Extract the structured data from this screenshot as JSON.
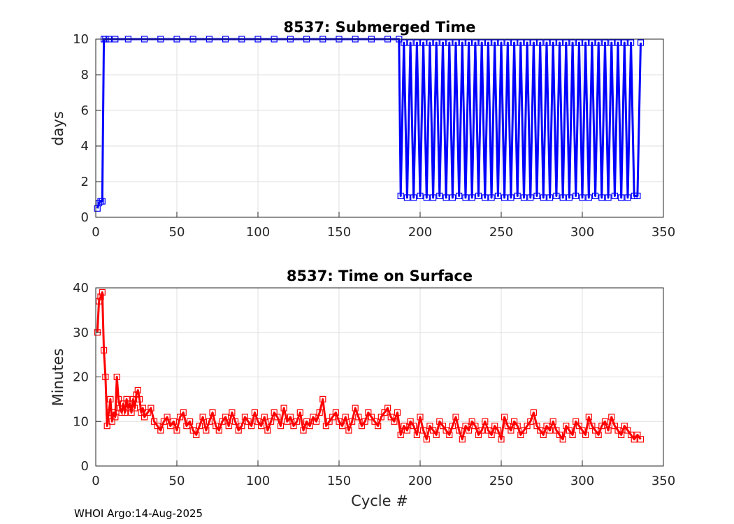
{
  "chart_data": [
    {
      "type": "line",
      "title": "8537: Submerged Time",
      "xlabel": "",
      "ylabel": "days",
      "xlim": [
        0,
        350
      ],
      "ylim": [
        0,
        10
      ],
      "xticks": [
        "0",
        "50",
        "100",
        "150",
        "200",
        "250",
        "300",
        "350"
      ],
      "yticks": [
        "0",
        "2",
        "4",
        "6",
        "8",
        "10"
      ],
      "grid": true,
      "color": "#0000ff",
      "marker": "square",
      "series": [
        {
          "name": "Submerged Time",
          "x": [
            1,
            2,
            3,
            4,
            5,
            6,
            8,
            12,
            20,
            30,
            40,
            50,
            60,
            70,
            80,
            90,
            100,
            110,
            120,
            130,
            140,
            150,
            160,
            170,
            180,
            187,
            188,
            190,
            192,
            194,
            196,
            198,
            200,
            202,
            204,
            206,
            208,
            210,
            212,
            214,
            216,
            218,
            220,
            222,
            224,
            226,
            228,
            230,
            232,
            234,
            236,
            238,
            240,
            242,
            244,
            246,
            248,
            250,
            252,
            254,
            256,
            258,
            260,
            262,
            264,
            266,
            268,
            270,
            272,
            274,
            276,
            278,
            280,
            282,
            284,
            286,
            288,
            290,
            292,
            294,
            296,
            298,
            300,
            302,
            304,
            306,
            308,
            310,
            312,
            314,
            316,
            318,
            320,
            322,
            324,
            326,
            328,
            330,
            332,
            334,
            336
          ],
          "y": [
            0.5,
            0.8,
            0.9,
            0.9,
            10.0,
            10.0,
            10.0,
            10.0,
            10.0,
            10.0,
            10.0,
            10.0,
            10.0,
            10.0,
            10.0,
            10.0,
            10.0,
            10.0,
            10.0,
            10.0,
            10.0,
            10.0,
            10.0,
            10.0,
            10.0,
            10.0,
            1.2,
            9.8,
            1.1,
            9.8,
            1.1,
            9.8,
            1.2,
            9.8,
            1.1,
            9.8,
            1.1,
            9.8,
            1.2,
            9.8,
            1.1,
            9.8,
            1.1,
            9.8,
            1.2,
            9.8,
            1.1,
            9.8,
            1.1,
            9.8,
            1.2,
            9.8,
            1.1,
            9.8,
            1.1,
            9.8,
            1.2,
            9.8,
            1.1,
            9.8,
            1.1,
            9.8,
            1.2,
            9.8,
            1.1,
            9.8,
            1.1,
            9.8,
            1.2,
            9.8,
            1.1,
            9.8,
            1.1,
            9.8,
            1.2,
            9.8,
            1.1,
            9.8,
            1.1,
            9.8,
            1.2,
            9.8,
            1.1,
            9.8,
            1.1,
            9.8,
            1.2,
            9.8,
            1.1,
            9.8,
            1.1,
            9.8,
            1.2,
            9.8,
            1.1,
            9.8,
            1.1,
            9.8,
            1.2,
            1.2,
            9.8
          ]
        }
      ]
    },
    {
      "type": "line",
      "title": "8537: Time on Surface",
      "xlabel": "Cycle #",
      "ylabel": "Minutes",
      "xlim": [
        0,
        350
      ],
      "ylim": [
        0,
        40
      ],
      "xticks": [
        "0",
        "50",
        "100",
        "150",
        "200",
        "250",
        "300",
        "350"
      ],
      "yticks": [
        "0",
        "10",
        "20",
        "30",
        "40"
      ],
      "grid": true,
      "color": "#ff0000",
      "marker": "square",
      "series": [
        {
          "name": "Time on Surface",
          "x": [
            1,
            2,
            3,
            4,
            5,
            6,
            7,
            8,
            9,
            10,
            11,
            12,
            13,
            14,
            15,
            16,
            17,
            18,
            19,
            20,
            21,
            22,
            23,
            24,
            25,
            26,
            27,
            28,
            29,
            30,
            32,
            34,
            36,
            38,
            40,
            42,
            44,
            46,
            48,
            50,
            52,
            54,
            56,
            58,
            60,
            62,
            64,
            66,
            68,
            70,
            72,
            74,
            76,
            78,
            80,
            82,
            84,
            86,
            88,
            90,
            92,
            94,
            96,
            98,
            100,
            102,
            104,
            106,
            108,
            110,
            112,
            114,
            116,
            118,
            120,
            122,
            124,
            126,
            128,
            130,
            132,
            134,
            136,
            138,
            140,
            142,
            144,
            146,
            148,
            150,
            152,
            154,
            156,
            158,
            160,
            162,
            164,
            166,
            168,
            170,
            172,
            174,
            176,
            178,
            180,
            182,
            184,
            186,
            188,
            190,
            192,
            194,
            196,
            198,
            200,
            202,
            204,
            206,
            208,
            210,
            212,
            214,
            216,
            218,
            220,
            222,
            224,
            226,
            228,
            230,
            232,
            234,
            236,
            238,
            240,
            242,
            244,
            246,
            248,
            250,
            252,
            254,
            256,
            258,
            260,
            262,
            264,
            266,
            268,
            270,
            272,
            274,
            276,
            278,
            280,
            282,
            284,
            286,
            288,
            290,
            292,
            294,
            296,
            298,
            300,
            302,
            304,
            306,
            308,
            310,
            312,
            314,
            316,
            318,
            320,
            322,
            324,
            326,
            328,
            330,
            332,
            334,
            336
          ],
          "y": [
            30,
            37,
            38,
            39,
            26,
            20,
            9,
            12,
            15,
            10,
            12,
            11,
            20,
            15,
            13,
            12,
            14,
            12,
            15,
            13,
            14,
            12,
            15,
            13,
            16,
            17,
            15,
            12,
            13,
            11,
            12,
            13,
            10,
            9,
            8,
            10,
            11,
            9,
            10,
            8,
            11,
            12,
            9,
            10,
            8,
            7,
            9,
            11,
            8,
            10,
            12,
            9,
            8,
            10,
            11,
            9,
            12,
            10,
            8,
            9,
            11,
            10,
            9,
            12,
            10,
            9,
            11,
            8,
            10,
            12,
            11,
            9,
            13,
            10,
            11,
            9,
            10,
            12,
            8,
            10,
            9,
            11,
            10,
            12,
            15,
            9,
            10,
            11,
            12,
            10,
            9,
            11,
            8,
            10,
            13,
            11,
            9,
            10,
            12,
            11,
            10,
            9,
            11,
            12,
            13,
            11,
            10,
            12,
            7,
            9,
            8,
            10,
            9,
            7,
            11,
            8,
            6,
            9,
            8,
            7,
            10,
            9,
            8,
            7,
            9,
            11,
            8,
            6,
            9,
            8,
            10,
            9,
            7,
            8,
            10,
            8,
            7,
            9,
            8,
            6,
            11,
            9,
            8,
            10,
            9,
            7,
            8,
            9,
            10,
            12,
            9,
            8,
            7,
            9,
            8,
            10,
            8,
            7,
            6,
            9,
            8,
            7,
            10,
            9,
            8,
            7,
            11,
            9,
            8,
            7,
            9,
            10,
            8,
            11,
            9,
            8,
            7,
            9,
            8,
            7,
            6,
            7,
            6
          ]
        }
      ]
    }
  ],
  "footer": "WHOI Argo:14-Aug-2025"
}
